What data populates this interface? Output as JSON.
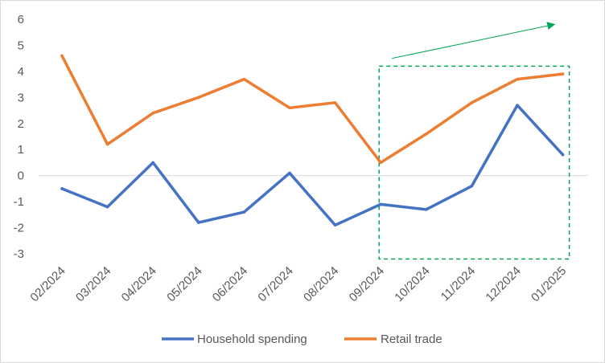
{
  "chart_data": {
    "type": "line",
    "title": "",
    "xlabel": "",
    "ylabel": "",
    "ylim": [
      -3,
      6
    ],
    "yticks": [
      -3,
      -2,
      -1,
      0,
      1,
      2,
      3,
      4,
      5,
      6
    ],
    "ytick_labels": [
      "-3",
      "-2",
      "-1",
      "0",
      "1",
      "2",
      "3",
      "4",
      "5",
      "6"
    ],
    "grid": false,
    "legend_position": "bottom",
    "categories": [
      "02/2024",
      "03/2024",
      "04/2024",
      "05/2024",
      "06/2024",
      "07/2024",
      "08/2024",
      "09/2024",
      "10/2024",
      "11/2024",
      "12/2024",
      "01/2025"
    ],
    "series": [
      {
        "name": "Household spending",
        "color": "#4472c4",
        "values": [
          -0.5,
          -1.2,
          0.5,
          -1.8,
          -1.4,
          0.1,
          -1.9,
          -1.1,
          -1.3,
          -0.4,
          2.7,
          0.8
        ]
      },
      {
        "name": "Retail trade",
        "color": "#ed7d31",
        "values": [
          4.6,
          1.2,
          2.4,
          3.0,
          3.7,
          2.6,
          2.8,
          0.5,
          1.6,
          2.8,
          3.7,
          3.9
        ]
      }
    ],
    "annotations": {
      "highlight_box": {
        "from_category": "09/2024",
        "to_category": "01/2025",
        "y_range": [
          -3.2,
          4.2
        ],
        "color": "#00a651",
        "style": "dashed"
      },
      "trend_arrow": {
        "from": {
          "category": "09/2024",
          "y": 4.5
        },
        "to": {
          "category": "12/2024",
          "y": 5.8,
          "offset_fraction": 0.8
        },
        "color": "#00a651"
      }
    }
  }
}
